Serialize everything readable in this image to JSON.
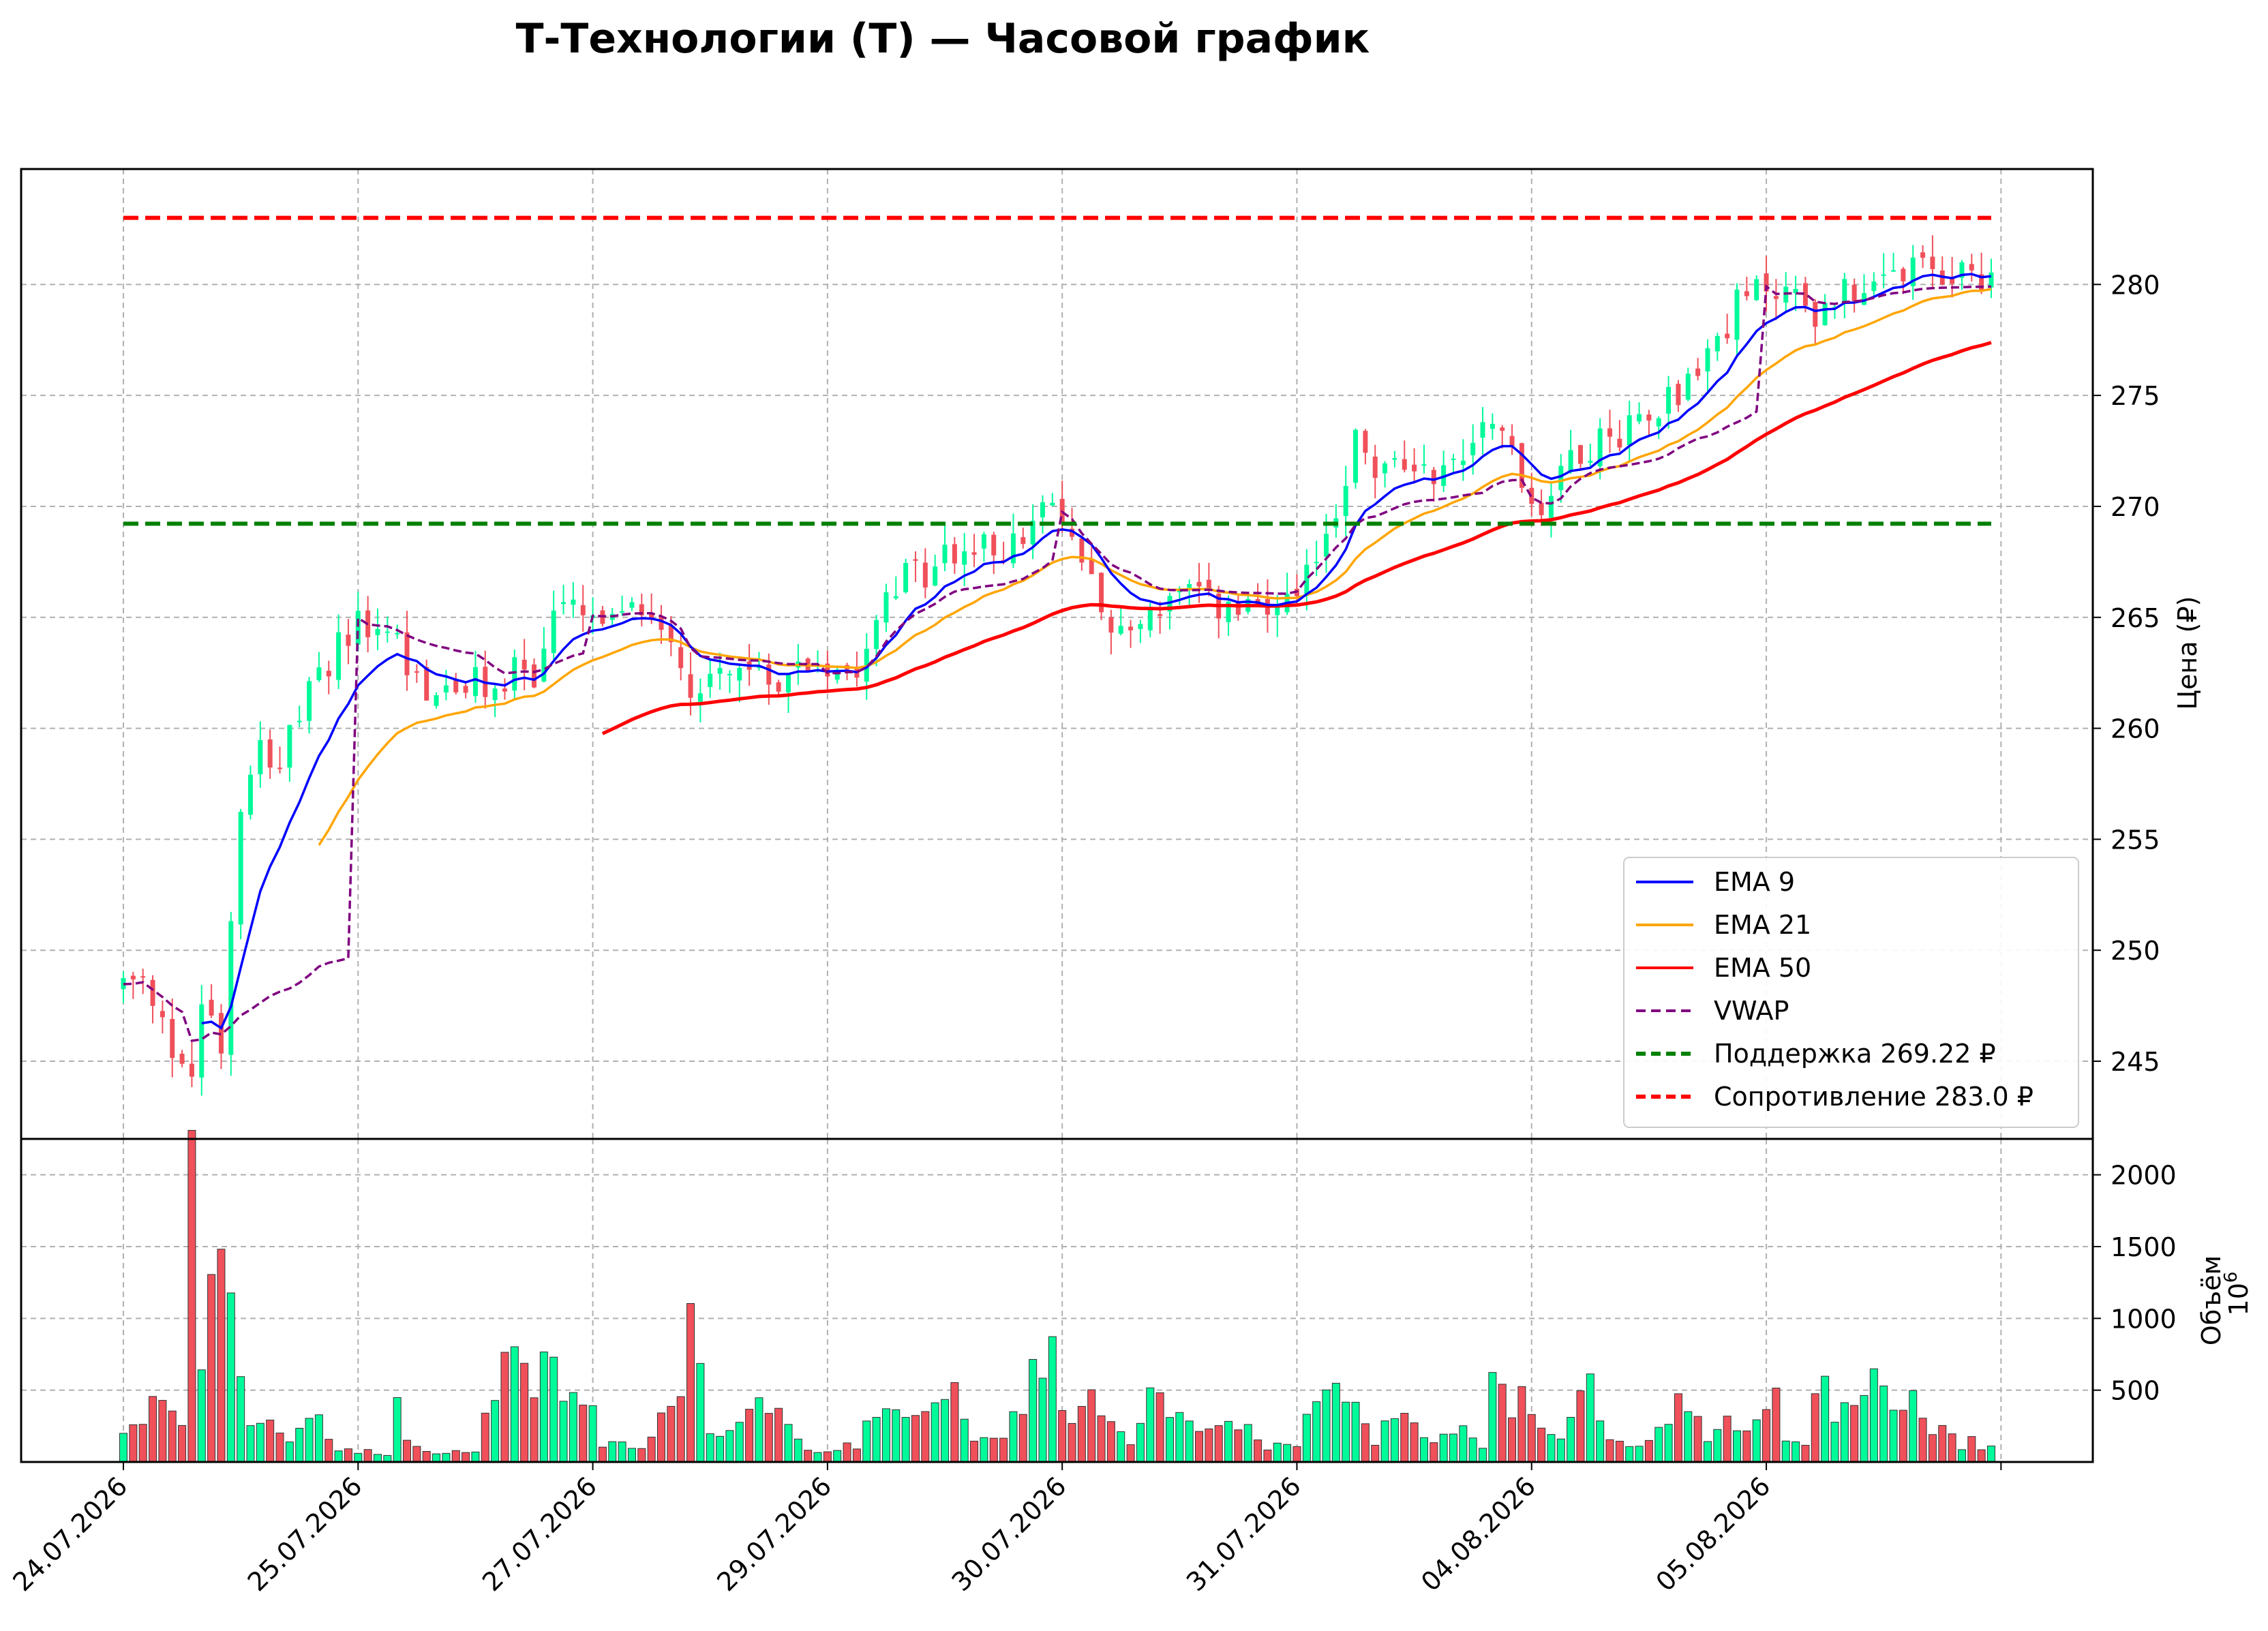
{
  "chart_data": {
    "type": "candlestick",
    "title": "Т-Технологии (Т) — Часовой график",
    "ylabel_price": "Цена (₽)",
    "ylabel_volume": "Объём",
    "volume_scale_label": "10",
    "volume_scale_exp": "6",
    "x_tick_labels": [
      "24.07.2026",
      "25.07.2026",
      "27.07.2026",
      "29.07.2026",
      "30.07.2026",
      "31.07.2026",
      "04.08.2026",
      "05.08.2026",
      ""
    ],
    "price_ticks": [
      245,
      250,
      255,
      260,
      265,
      270,
      275,
      280
    ],
    "price_ylim": [
      241.5,
      285.2
    ],
    "volume_ticks": [
      500,
      1000,
      1500,
      2000
    ],
    "volume_ylim": [
      0,
      2250
    ],
    "grid": true,
    "legend_position": "lower right",
    "colors": {
      "bull": "#00fa9a",
      "bear": "#f0505a",
      "ema9": "#0000ff",
      "ema21": "#ffa500",
      "ema50": "#ff0000",
      "vwap": "#800080",
      "support": "#008000",
      "resistance": "#ff0000"
    },
    "support": 269.22,
    "resistance": 283.0,
    "legend": [
      {
        "label": "EMA 9",
        "color": "#0000ff",
        "style": "solid"
      },
      {
        "label": "EMA 21",
        "color": "#ffa500",
        "style": "solid"
      },
      {
        "label": "EMA 50",
        "color": "#ff0000",
        "style": "solid"
      },
      {
        "label": "VWAP",
        "color": "#800080",
        "style": "dashed"
      },
      {
        "label": "Поддержка 269.22 ₽",
        "color": "#008000",
        "style": "dashed"
      },
      {
        "label": "Сопротивление 283.0 ₽",
        "color": "#ff0000",
        "style": "dashed"
      }
    ],
    "close_anchors": [
      [
        0,
        248.5
      ],
      [
        2,
        248.3
      ],
      [
        5,
        245.5
      ],
      [
        7,
        244.5
      ],
      [
        8,
        248.0
      ],
      [
        10,
        246.0
      ],
      [
        11,
        251.5
      ],
      [
        12,
        257.0
      ],
      [
        14,
        259.5
      ],
      [
        16,
        258.5
      ],
      [
        18,
        260.5
      ],
      [
        21,
        263.0
      ],
      [
        23,
        264.5
      ],
      [
        26,
        264.5
      ],
      [
        28,
        264.0
      ],
      [
        30,
        262.0
      ],
      [
        33,
        261.5
      ],
      [
        36,
        262.0
      ],
      [
        38,
        261.5
      ],
      [
        40,
        263.0
      ],
      [
        42,
        262.0
      ],
      [
        44,
        265.5
      ],
      [
        47,
        265.0
      ],
      [
        50,
        264.5
      ],
      [
        53,
        265.5
      ],
      [
        56,
        264.5
      ],
      [
        58,
        261.5
      ],
      [
        60,
        262.5
      ],
      [
        63,
        263.0
      ],
      [
        65,
        262.0
      ],
      [
        70,
        263.0
      ],
      [
        75,
        263.0
      ],
      [
        78,
        266.5
      ],
      [
        82,
        267.0
      ],
      [
        85,
        268.0
      ],
      [
        88,
        268.0
      ],
      [
        92,
        268.5
      ],
      [
        95,
        270.0
      ],
      [
        97,
        268.5
      ],
      [
        100,
        266.0
      ],
      [
        102,
        264.0
      ],
      [
        104,
        265.0
      ],
      [
        108,
        266.0
      ],
      [
        112,
        265.5
      ],
      [
        116,
        265.0
      ],
      [
        120,
        265.5
      ],
      [
        124,
        270.0
      ],
      [
        126,
        273.0
      ],
      [
        128,
        271.5
      ],
      [
        132,
        272.0
      ],
      [
        135,
        271.5
      ],
      [
        138,
        273.0
      ],
      [
        140,
        274.5
      ],
      [
        143,
        271.0
      ],
      [
        145,
        270.0
      ],
      [
        148,
        272.5
      ],
      [
        152,
        273.0
      ],
      [
        156,
        274.5
      ],
      [
        160,
        275.5
      ],
      [
        165,
        279.0
      ],
      [
        168,
        280.0
      ],
      [
        171,
        279.5
      ],
      [
        174,
        278.5
      ],
      [
        176,
        280.5
      ],
      [
        178,
        279.0
      ],
      [
        180,
        280.0
      ],
      [
        182,
        280.5
      ]
    ],
    "volume_anchors": [
      [
        0,
        160
      ],
      [
        4,
        460
      ],
      [
        6,
        280
      ],
      [
        7,
        2050
      ],
      [
        8,
        710
      ],
      [
        9,
        1250
      ],
      [
        10,
        1690
      ],
      [
        11,
        1220
      ],
      [
        12,
        790
      ],
      [
        13,
        220
      ],
      [
        15,
        270
      ],
      [
        17,
        130
      ],
      [
        19,
        280
      ],
      [
        20,
        270
      ],
      [
        22,
        80
      ],
      [
        25,
        80
      ],
      [
        27,
        50
      ],
      [
        28,
        490
      ],
      [
        29,
        150
      ],
      [
        31,
        70
      ],
      [
        33,
        70
      ],
      [
        36,
        60
      ],
      [
        38,
        560
      ],
      [
        40,
        830
      ],
      [
        41,
        650
      ],
      [
        42,
        470
      ],
      [
        43,
        800
      ],
      [
        45,
        390
      ],
      [
        47,
        520
      ],
      [
        49,
        120
      ],
      [
        53,
        120
      ],
      [
        55,
        330
      ],
      [
        57,
        400
      ],
      [
        58,
        960
      ],
      [
        59,
        720
      ],
      [
        60,
        180
      ],
      [
        63,
        240
      ],
      [
        65,
        390
      ],
      [
        67,
        300
      ],
      [
        68,
        270
      ],
      [
        70,
        70
      ],
      [
        75,
        120
      ],
      [
        77,
        410
      ],
      [
        79,
        360
      ],
      [
        82,
        360
      ],
      [
        85,
        480
      ],
      [
        87,
        120
      ],
      [
        90,
        220
      ],
      [
        92,
        350
      ],
      [
        93,
        650
      ],
      [
        94,
        730
      ],
      [
        95,
        710
      ],
      [
        96,
        320
      ],
      [
        99,
        430
      ],
      [
        101,
        270
      ],
      [
        103,
        100
      ],
      [
        105,
        440
      ],
      [
        108,
        360
      ],
      [
        110,
        280
      ],
      [
        113,
        270
      ],
      [
        115,
        240
      ],
      [
        117,
        100
      ],
      [
        120,
        120
      ],
      [
        121,
        390
      ],
      [
        124,
        550
      ],
      [
        126,
        400
      ],
      [
        128,
        150
      ],
      [
        130,
        320
      ],
      [
        132,
        240
      ],
      [
        134,
        150
      ],
      [
        137,
        220
      ],
      [
        139,
        80
      ],
      [
        140,
        810
      ],
      [
        141,
        610
      ],
      [
        142,
        370
      ],
      [
        143,
        530
      ],
      [
        145,
        260
      ],
      [
        147,
        200
      ],
      [
        148,
        350
      ],
      [
        150,
        560
      ],
      [
        152,
        190
      ],
      [
        154,
        90
      ],
      [
        156,
        200
      ],
      [
        158,
        300
      ],
      [
        159,
        590
      ],
      [
        161,
        330
      ],
      [
        162,
        150
      ],
      [
        164,
        310
      ],
      [
        166,
        200
      ],
      [
        168,
        400
      ],
      [
        169,
        440
      ],
      [
        170,
        130
      ],
      [
        172,
        140
      ],
      [
        174,
        740
      ],
      [
        175,
        290
      ],
      [
        177,
        500
      ],
      [
        178,
        600
      ],
      [
        179,
        520
      ],
      [
        181,
        360
      ],
      [
        183,
        450
      ],
      [
        185,
        200
      ],
      [
        187,
        250
      ],
      [
        188,
        80
      ],
      [
        189,
        220
      ],
      [
        190,
        80
      ],
      [
        191,
        100
      ]
    ]
  }
}
